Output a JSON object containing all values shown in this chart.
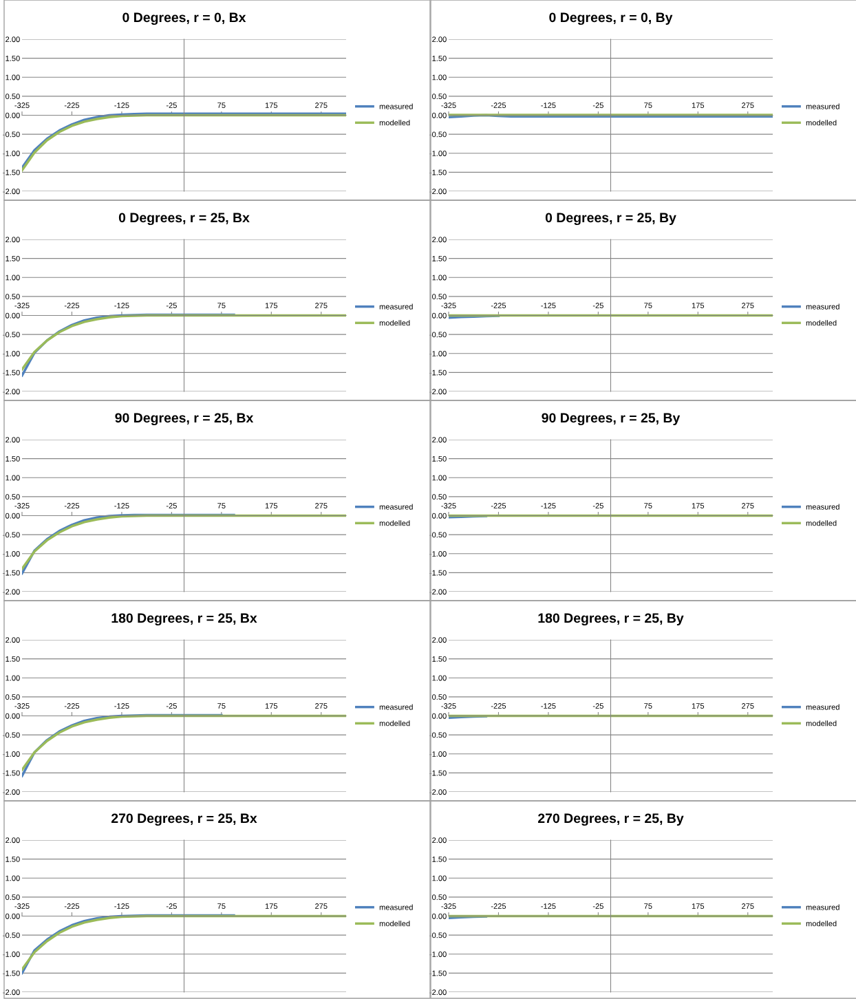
{
  "chart_data": [
    {
      "type": "line",
      "title": "0 Degrees, r = 0, Bx",
      "x": [
        -325,
        -300,
        -275,
        -250,
        -225,
        -200,
        -175,
        -150,
        -125,
        -100,
        -75,
        -50,
        -25,
        0,
        25,
        50,
        75,
        100,
        125,
        150,
        175,
        200,
        225,
        250,
        275,
        300,
        325
      ],
      "xlim": [
        -325,
        325
      ],
      "xticks": [
        -325,
        -225,
        -125,
        -25,
        75,
        175,
        275
      ],
      "ylim": [
        -2,
        2
      ],
      "yticks": [
        {
          "value": -2,
          "label": "-2.00"
        },
        {
          "value": -1.5,
          "label": "-1.50"
        },
        {
          "value": -1,
          "label": "-1.00"
        },
        {
          "value": -0.5,
          "label": "-0.50"
        },
        {
          "value": 0,
          "label": "0.00"
        },
        {
          "value": 0.5,
          "label": "0.50"
        },
        {
          "value": 1,
          "label": "1.00"
        },
        {
          "value": 1.5,
          "label": "1.50"
        },
        {
          "value": 2,
          "label": "2.00"
        }
      ],
      "grid": "y",
      "legend": "right",
      "series": [
        {
          "name": "measured",
          "color": "#4f81bd",
          "values": [
            -1.38,
            -0.92,
            -0.62,
            -0.4,
            -0.24,
            -0.12,
            -0.05,
            0.0,
            0.02,
            0.03,
            0.04,
            0.04,
            0.04,
            0.04,
            0.04,
            0.04,
            0.04,
            0.04,
            0.04,
            0.04,
            0.04,
            0.04,
            0.04,
            0.04,
            0.04,
            0.04,
            0.04
          ]
        },
        {
          "name": "modelled",
          "color": "#9bbb59",
          "values": [
            -1.45,
            -0.98,
            -0.66,
            -0.44,
            -0.28,
            -0.17,
            -0.1,
            -0.05,
            -0.02,
            -0.01,
            0.0,
            0.0,
            0.0,
            0.0,
            0.0,
            0.0,
            0.0,
            0.0,
            0.0,
            0.0,
            0.0,
            0.0,
            0.0,
            0.0,
            0.0,
            0.0,
            0.0
          ]
        }
      ]
    },
    {
      "type": "line",
      "title": "0 Degrees, r = 0, By",
      "x": [
        -325,
        -300,
        -275,
        -250,
        -225,
        -200,
        -175,
        -150,
        -125,
        -100,
        -75,
        -50,
        -25,
        0,
        25,
        50,
        75,
        100,
        125,
        150,
        175,
        200,
        225,
        250,
        275,
        300,
        325
      ],
      "xlim": [
        -325,
        325
      ],
      "xticks": [
        -325,
        -225,
        -125,
        -25,
        75,
        175,
        275
      ],
      "ylim": [
        -2,
        2
      ],
      "yticks": [
        {
          "value": -2,
          "label": "-2.00"
        },
        {
          "value": -1.5,
          "label": "-1.50"
        },
        {
          "value": -1,
          "label": "-1.00"
        },
        {
          "value": -0.5,
          "label": "-0.50"
        },
        {
          "value": 0,
          "label": "0.00"
        },
        {
          "value": 0.5,
          "label": "0.50"
        },
        {
          "value": 1,
          "label": "1.00"
        },
        {
          "value": 1.5,
          "label": "1.50"
        },
        {
          "value": 2,
          "label": "2.00"
        }
      ],
      "grid": "y",
      "legend": "right",
      "series": [
        {
          "name": "measured",
          "color": "#4f81bd",
          "values": [
            -0.05,
            -0.03,
            -0.01,
            0.0,
            -0.02,
            -0.03,
            -0.03,
            -0.03,
            -0.03,
            -0.03,
            -0.03,
            -0.03,
            -0.03,
            -0.03,
            -0.03,
            -0.03,
            -0.03,
            -0.03,
            -0.03,
            -0.03,
            -0.03,
            -0.03,
            -0.03,
            -0.03,
            -0.03,
            -0.03,
            -0.03
          ]
        },
        {
          "name": "modelled",
          "color": "#9bbb59",
          "values": [
            0.01,
            0.01,
            0.01,
            0.01,
            0.01,
            0.01,
            0.01,
            0.01,
            0.01,
            0.01,
            0.01,
            0.01,
            0.01,
            0.01,
            0.01,
            0.01,
            0.01,
            0.01,
            0.01,
            0.01,
            0.01,
            0.01,
            0.01,
            0.01,
            0.01,
            0.01,
            0.01
          ]
        }
      ]
    },
    {
      "type": "line",
      "title": "0 Degrees, r = 25, Bx",
      "x": [
        -325,
        -300,
        -275,
        -250,
        -225,
        -200,
        -175,
        -150,
        -125,
        -100,
        -75,
        -50,
        -25,
        0,
        25,
        50,
        75,
        100,
        125,
        150,
        175,
        200,
        225,
        250,
        275,
        300,
        325
      ],
      "xlim": [
        -325,
        325
      ],
      "xticks": [
        -325,
        -225,
        -125,
        -25,
        75,
        175,
        275
      ],
      "ylim": [
        -2,
        2
      ],
      "yticks": [
        {
          "value": -2,
          "label": "-2.00"
        },
        {
          "value": -1.5,
          "label": "-1.50"
        },
        {
          "value": -1,
          "label": "-1.00"
        },
        {
          "value": -0.5,
          "label": "-0.50"
        },
        {
          "value": 0,
          "label": "0.00"
        },
        {
          "value": 0.5,
          "label": "0.50"
        },
        {
          "value": 1,
          "label": "1.00"
        },
        {
          "value": 1.5,
          "label": "1.50"
        },
        {
          "value": 2,
          "label": "2.00"
        }
      ],
      "grid": "y",
      "legend": "right",
      "series": [
        {
          "name": "measured",
          "color": "#4f81bd",
          "values": [
            -1.58,
            -0.98,
            -0.66,
            -0.42,
            -0.25,
            -0.13,
            -0.06,
            -0.02,
            0.0,
            0.01,
            0.02,
            0.02,
            0.02,
            0.02,
            0.02,
            0.02,
            0.02,
            0.02,
            null,
            null,
            null,
            null,
            null,
            null,
            null,
            null,
            null
          ]
        },
        {
          "name": "modelled",
          "color": "#9bbb59",
          "values": [
            -1.42,
            -0.96,
            -0.66,
            -0.44,
            -0.28,
            -0.17,
            -0.1,
            -0.05,
            -0.02,
            -0.01,
            0.0,
            0.0,
            0.0,
            0.0,
            0.0,
            0.0,
            0.0,
            0.0,
            0.0,
            0.0,
            0.0,
            0.0,
            0.0,
            0.0,
            0.0,
            0.0,
            0.0
          ]
        }
      ]
    },
    {
      "type": "line",
      "title": "0 Degrees, r = 25, By",
      "x": [
        -325,
        -300,
        -275,
        -250,
        -225,
        -200,
        -175,
        -150,
        -125,
        -100,
        -75,
        -50,
        -25,
        0,
        25,
        50,
        75,
        100,
        125,
        150,
        175,
        200,
        225,
        250,
        275,
        300,
        325
      ],
      "xlim": [
        -325,
        325
      ],
      "xticks": [
        -325,
        -225,
        -125,
        -25,
        75,
        175,
        275
      ],
      "ylim": [
        -2,
        2
      ],
      "yticks": [
        {
          "value": -2,
          "label": "-2.00"
        },
        {
          "value": -1.5,
          "label": "-1.50"
        },
        {
          "value": -1,
          "label": "-1.00"
        },
        {
          "value": -0.5,
          "label": "-0.50"
        },
        {
          "value": 0,
          "label": "0.00"
        },
        {
          "value": 0.5,
          "label": "0.50"
        },
        {
          "value": 1,
          "label": "1.00"
        },
        {
          "value": 1.5,
          "label": "1.50"
        },
        {
          "value": 2,
          "label": "2.00"
        }
      ],
      "grid": "y",
      "legend": "right",
      "series": [
        {
          "name": "measured",
          "color": "#4f81bd",
          "values": [
            -0.06,
            -0.04,
            -0.03,
            -0.02,
            -0.01,
            null,
            null,
            null,
            null,
            null,
            null,
            null,
            null,
            null,
            null,
            null,
            null,
            null,
            null,
            null,
            null,
            null,
            null,
            null,
            null,
            null,
            null
          ]
        },
        {
          "name": "modelled",
          "color": "#9bbb59",
          "values": [
            0.0,
            0.0,
            0.0,
            0.0,
            0.0,
            0.0,
            0.0,
            0.0,
            0.0,
            0.0,
            0.0,
            0.0,
            0.0,
            0.0,
            0.0,
            0.0,
            0.0,
            0.0,
            0.0,
            0.0,
            0.0,
            0.0,
            0.0,
            0.0,
            0.0,
            0.0,
            0.0
          ]
        }
      ]
    },
    {
      "type": "line",
      "title": "90 Degrees, r = 25, Bx",
      "x": [
        -325,
        -300,
        -275,
        -250,
        -225,
        -200,
        -175,
        -150,
        -125,
        -100,
        -75,
        -50,
        -25,
        0,
        25,
        50,
        75,
        100,
        125,
        150,
        175,
        200,
        225,
        250,
        275,
        300,
        325
      ],
      "xlim": [
        -325,
        325
      ],
      "xticks": [
        -325,
        -225,
        -125,
        -25,
        75,
        175,
        275
      ],
      "ylim": [
        -2,
        2
      ],
      "yticks": [
        {
          "value": -2,
          "label": "-2.00"
        },
        {
          "value": -1.5,
          "label": "-1.50"
        },
        {
          "value": -1,
          "label": "-1.00"
        },
        {
          "value": -0.5,
          "label": "-0.50"
        },
        {
          "value": 0,
          "label": "0.00"
        },
        {
          "value": 0.5,
          "label": "0.50"
        },
        {
          "value": 1,
          "label": "1.00"
        },
        {
          "value": 1.5,
          "label": "1.50"
        },
        {
          "value": 2,
          "label": "2.00"
        }
      ],
      "grid": "y",
      "legend": "right",
      "series": [
        {
          "name": "measured",
          "color": "#4f81bd",
          "values": [
            -1.52,
            -0.92,
            -0.62,
            -0.4,
            -0.24,
            -0.12,
            -0.05,
            -0.01,
            0.01,
            0.02,
            0.02,
            0.02,
            0.02,
            0.02,
            0.02,
            0.02,
            0.02,
            0.02,
            null,
            null,
            null,
            null,
            null,
            null,
            null,
            null,
            null
          ]
        },
        {
          "name": "modelled",
          "color": "#9bbb59",
          "values": [
            -1.4,
            -0.94,
            -0.65,
            -0.44,
            -0.28,
            -0.17,
            -0.1,
            -0.05,
            -0.02,
            -0.01,
            0.0,
            0.0,
            0.0,
            0.0,
            0.0,
            0.0,
            0.0,
            0.0,
            0.0,
            0.0,
            0.0,
            0.0,
            0.0,
            0.0,
            0.0,
            0.0,
            0.0
          ]
        }
      ]
    },
    {
      "type": "line",
      "title": "90 Degrees, r = 25, By",
      "x": [
        -325,
        -300,
        -275,
        -250,
        -225,
        -200,
        -175,
        -150,
        -125,
        -100,
        -75,
        -50,
        -25,
        0,
        25,
        50,
        75,
        100,
        125,
        150,
        175,
        200,
        225,
        250,
        275,
        300,
        325
      ],
      "xlim": [
        -325,
        325
      ],
      "xticks": [
        -325,
        -225,
        -125,
        -25,
        75,
        175,
        275
      ],
      "ylim": [
        -2,
        2
      ],
      "yticks": [
        {
          "value": -2,
          "label": "-2.00"
        },
        {
          "value": -1.5,
          "label": "-1.50"
        },
        {
          "value": -1,
          "label": "-1.00"
        },
        {
          "value": -0.5,
          "label": "-0.50"
        },
        {
          "value": 0,
          "label": "0.00"
        },
        {
          "value": 0.5,
          "label": "0.50"
        },
        {
          "value": 1,
          "label": "1.00"
        },
        {
          "value": 1.5,
          "label": "1.50"
        },
        {
          "value": 2,
          "label": "2.00"
        }
      ],
      "grid": "y",
      "legend": "right",
      "series": [
        {
          "name": "measured",
          "color": "#4f81bd",
          "values": [
            -0.04,
            -0.03,
            -0.02,
            -0.01,
            null,
            null,
            null,
            null,
            null,
            null,
            null,
            null,
            null,
            null,
            null,
            null,
            null,
            null,
            null,
            null,
            null,
            null,
            null,
            null,
            null,
            null,
            null
          ]
        },
        {
          "name": "modelled",
          "color": "#9bbb59",
          "values": [
            0.0,
            0.0,
            0.0,
            0.0,
            0.0,
            0.0,
            0.0,
            0.0,
            0.0,
            0.0,
            0.0,
            0.0,
            0.0,
            0.0,
            0.0,
            0.0,
            0.0,
            0.0,
            0.0,
            0.0,
            0.0,
            0.0,
            0.0,
            0.0,
            0.0,
            0.0,
            0.0
          ]
        }
      ]
    },
    {
      "type": "line",
      "title": "180 Degrees, r = 25, Bx",
      "x": [
        -325,
        -300,
        -275,
        -250,
        -225,
        -200,
        -175,
        -150,
        -125,
        -100,
        -75,
        -50,
        -25,
        0,
        25,
        50,
        75,
        100,
        125,
        150,
        175,
        200,
        225,
        250,
        275,
        300,
        325
      ],
      "xlim": [
        -325,
        325
      ],
      "xticks": [
        -325,
        -225,
        -125,
        -25,
        75,
        175,
        275
      ],
      "ylim": [
        -2,
        2
      ],
      "yticks": [
        {
          "value": -2,
          "label": "-2.00"
        },
        {
          "value": -1.5,
          "label": "-1.50"
        },
        {
          "value": -1,
          "label": "-1.00"
        },
        {
          "value": -0.5,
          "label": "-0.50"
        },
        {
          "value": 0,
          "label": "0.00"
        },
        {
          "value": 0.5,
          "label": "0.50"
        },
        {
          "value": 1,
          "label": "1.00"
        },
        {
          "value": 1.5,
          "label": "1.50"
        },
        {
          "value": 2,
          "label": "2.00"
        }
      ],
      "grid": "y",
      "legend": "right",
      "series": [
        {
          "name": "measured",
          "color": "#4f81bd",
          "values": [
            -1.58,
            -0.96,
            -0.64,
            -0.41,
            -0.25,
            -0.13,
            -0.06,
            -0.02,
            0.0,
            0.01,
            0.02,
            0.02,
            0.02,
            0.02,
            0.02,
            0.02,
            0.02,
            null,
            null,
            null,
            null,
            null,
            null,
            null,
            null,
            null,
            null
          ]
        },
        {
          "name": "modelled",
          "color": "#9bbb59",
          "values": [
            -1.42,
            -0.96,
            -0.66,
            -0.44,
            -0.28,
            -0.17,
            -0.1,
            -0.05,
            -0.02,
            -0.01,
            0.0,
            0.0,
            0.0,
            0.0,
            0.0,
            0.0,
            0.0,
            0.0,
            0.0,
            0.0,
            0.0,
            0.0,
            0.0,
            0.0,
            0.0,
            0.0,
            0.0
          ]
        }
      ]
    },
    {
      "type": "line",
      "title": "180 Degrees, r = 25, By",
      "x": [
        -325,
        -300,
        -275,
        -250,
        -225,
        -200,
        -175,
        -150,
        -125,
        -100,
        -75,
        -50,
        -25,
        0,
        25,
        50,
        75,
        100,
        125,
        150,
        175,
        200,
        225,
        250,
        275,
        300,
        325
      ],
      "xlim": [
        -325,
        325
      ],
      "xticks": [
        -325,
        -225,
        -125,
        -25,
        75,
        175,
        275
      ],
      "ylim": [
        -2,
        2
      ],
      "yticks": [
        {
          "value": -2,
          "label": "-2.00"
        },
        {
          "value": -1.5,
          "label": "-1.50"
        },
        {
          "value": -1,
          "label": "-1.00"
        },
        {
          "value": -0.5,
          "label": "-0.50"
        },
        {
          "value": 0,
          "label": "0.00"
        },
        {
          "value": 0.5,
          "label": "0.50"
        },
        {
          "value": 1,
          "label": "1.00"
        },
        {
          "value": 1.5,
          "label": "1.50"
        },
        {
          "value": 2,
          "label": "2.00"
        }
      ],
      "grid": "y",
      "legend": "right",
      "series": [
        {
          "name": "measured",
          "color": "#4f81bd",
          "values": [
            -0.05,
            -0.03,
            -0.02,
            -0.01,
            null,
            null,
            null,
            null,
            null,
            null,
            null,
            null,
            null,
            null,
            null,
            null,
            null,
            null,
            null,
            null,
            null,
            null,
            null,
            null,
            null,
            null,
            null
          ]
        },
        {
          "name": "modelled",
          "color": "#9bbb59",
          "values": [
            0.0,
            0.0,
            0.0,
            0.0,
            0.0,
            0.0,
            0.0,
            0.0,
            0.0,
            0.0,
            0.0,
            0.0,
            0.0,
            0.0,
            0.0,
            0.0,
            0.0,
            0.0,
            0.0,
            0.0,
            0.0,
            0.0,
            0.0,
            0.0,
            0.0,
            0.0,
            0.0
          ]
        }
      ]
    },
    {
      "type": "line",
      "title": "270 Degrees, r = 25, Bx",
      "x": [
        -325,
        -300,
        -275,
        -250,
        -225,
        -200,
        -175,
        -150,
        -125,
        -100,
        -75,
        -50,
        -25,
        0,
        25,
        50,
        75,
        100,
        125,
        150,
        175,
        200,
        225,
        250,
        275,
        300,
        325
      ],
      "xlim": [
        -325,
        325
      ],
      "xticks": [
        -325,
        -225,
        -125,
        -25,
        75,
        175,
        275
      ],
      "ylim": [
        -2,
        2
      ],
      "yticks": [
        {
          "value": -2,
          "label": "-2.00"
        },
        {
          "value": -1.5,
          "label": "-1.50"
        },
        {
          "value": -1,
          "label": "-1.00"
        },
        {
          "value": -0.5,
          "label": "-0.50"
        },
        {
          "value": 0,
          "label": "0.00"
        },
        {
          "value": 0.5,
          "label": "0.50"
        },
        {
          "value": 1,
          "label": "1.00"
        },
        {
          "value": 1.5,
          "label": "1.50"
        },
        {
          "value": 2,
          "label": "2.00"
        }
      ],
      "grid": "y",
      "legend": "right",
      "series": [
        {
          "name": "measured",
          "color": "#4f81bd",
          "values": [
            -1.5,
            -0.9,
            -0.62,
            -0.4,
            -0.24,
            -0.13,
            -0.06,
            -0.02,
            0.0,
            0.01,
            0.02,
            0.02,
            0.02,
            0.02,
            0.02,
            0.02,
            0.02,
            0.02,
            null,
            null,
            null,
            null,
            null,
            null,
            null,
            null,
            null
          ]
        },
        {
          "name": "modelled",
          "color": "#9bbb59",
          "values": [
            -1.4,
            -0.95,
            -0.66,
            -0.44,
            -0.28,
            -0.17,
            -0.1,
            -0.05,
            -0.02,
            -0.01,
            0.0,
            0.0,
            0.0,
            0.0,
            0.0,
            0.0,
            0.0,
            0.0,
            0.0,
            0.0,
            0.0,
            0.0,
            0.0,
            0.0,
            0.0,
            0.0,
            0.0
          ]
        }
      ]
    },
    {
      "type": "line",
      "title": "270 Degrees, r = 25, By",
      "x": [
        -325,
        -300,
        -275,
        -250,
        -225,
        -200,
        -175,
        -150,
        -125,
        -100,
        -75,
        -50,
        -25,
        0,
        25,
        50,
        75,
        100,
        125,
        150,
        175,
        200,
        225,
        250,
        275,
        300,
        325
      ],
      "xlim": [
        -325,
        325
      ],
      "xticks": [
        -325,
        -225,
        -125,
        -25,
        75,
        175,
        275
      ],
      "ylim": [
        -2,
        2
      ],
      "yticks": [
        {
          "value": -2,
          "label": "-2.00"
        },
        {
          "value": -1.5,
          "label": "-1.50"
        },
        {
          "value": -1,
          "label": "-1.00"
        },
        {
          "value": -0.5,
          "label": "-0.50"
        },
        {
          "value": 0,
          "label": "0.00"
        },
        {
          "value": 0.5,
          "label": "0.50"
        },
        {
          "value": 1,
          "label": "1.00"
        },
        {
          "value": 1.5,
          "label": "1.50"
        },
        {
          "value": 2,
          "label": "2.00"
        }
      ],
      "grid": "y",
      "legend": "right",
      "series": [
        {
          "name": "measured",
          "color": "#4f81bd",
          "values": [
            -0.05,
            -0.03,
            -0.02,
            -0.01,
            null,
            null,
            null,
            null,
            null,
            null,
            null,
            null,
            null,
            null,
            null,
            null,
            null,
            null,
            null,
            null,
            null,
            null,
            null,
            null,
            null,
            null,
            null
          ]
        },
        {
          "name": "modelled",
          "color": "#9bbb59",
          "values": [
            0.0,
            0.0,
            0.0,
            0.0,
            0.0,
            0.0,
            0.0,
            0.0,
            0.0,
            0.0,
            0.0,
            0.0,
            0.0,
            0.0,
            0.0,
            0.0,
            0.0,
            0.0,
            0.0,
            0.0,
            0.0,
            0.0,
            0.0,
            0.0,
            0.0,
            0.0,
            0.0
          ]
        }
      ]
    }
  ]
}
